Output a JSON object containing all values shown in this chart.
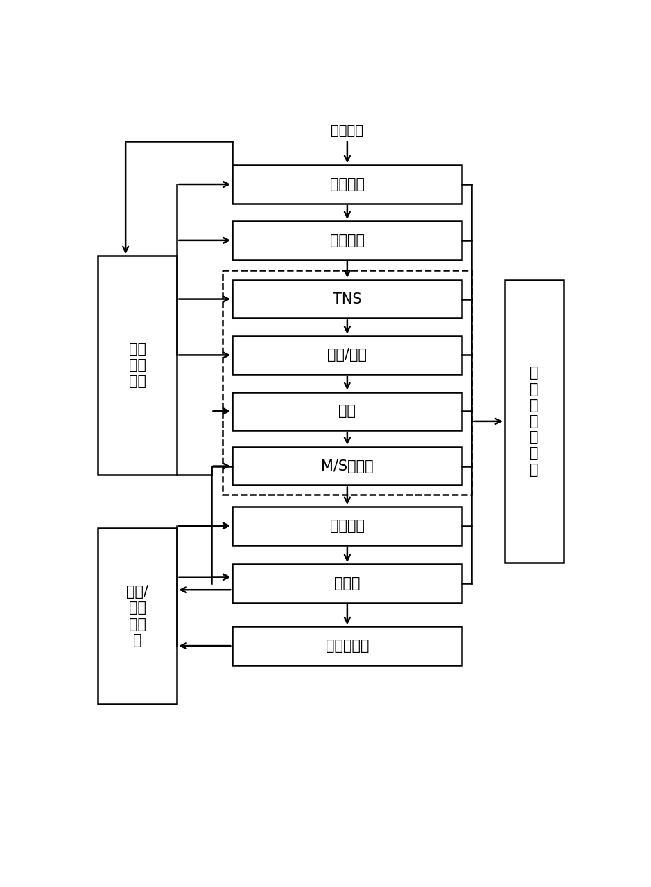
{
  "background_color": "#ffffff",
  "main_boxes": [
    {
      "id": "gain",
      "label": "增益控制",
      "row": 0
    },
    {
      "id": "filter",
      "label": "滤波器组",
      "row": 1
    },
    {
      "id": "tns",
      "label": "TNS",
      "row": 2
    },
    {
      "id": "intens",
      "label": "强度/耦合",
      "row": 3
    },
    {
      "id": "pred",
      "label": "预测",
      "row": 4
    },
    {
      "id": "ms",
      "label": "M/S立体声",
      "row": 5
    },
    {
      "id": "scale",
      "label": "比例因子",
      "row": 6
    },
    {
      "id": "quant",
      "label": "量化器",
      "row": 7
    },
    {
      "id": "noiseless",
      "label": "无噪声编码",
      "row": 8
    }
  ],
  "psycho_label": "心理\n声学\n模型",
  "rate_label": "码率/\n失真\n控制\n器",
  "output_label": "编\n码\n比\n特\n流\n输\n出",
  "input_label": "输入信号",
  "font_size": 15,
  "small_font_size": 14
}
